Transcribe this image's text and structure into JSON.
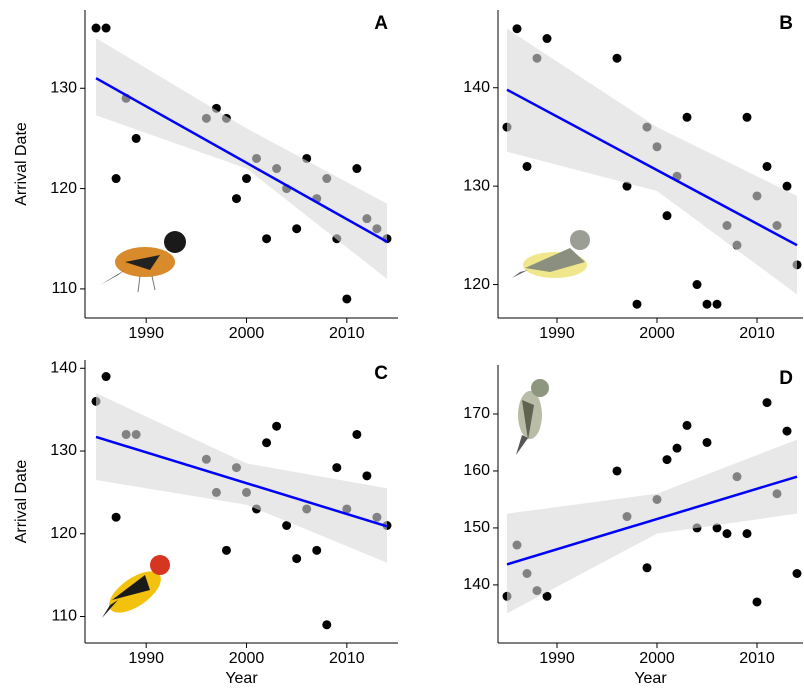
{
  "chart_data": [
    {
      "type": "scatter",
      "title": "A",
      "ylabel": "Arrival Date",
      "x": [
        1985,
        1986,
        1987,
        1988,
        1989,
        1996,
        1997,
        1998,
        1999,
        2000,
        2001,
        2002,
        2003,
        2004,
        2005,
        2006,
        2007,
        2008,
        2009,
        2010,
        2011,
        2012,
        2013,
        2014
      ],
      "values": [
        136,
        136,
        121,
        129,
        125,
        127,
        128,
        127,
        119,
        121,
        123,
        115,
        122,
        120,
        116,
        123,
        119,
        121,
        115,
        109,
        122,
        117,
        116,
        115
      ],
      "color": "#000000",
      "fit": {
        "x": [
          1985,
          2014
        ],
        "y": [
          131,
          114.7
        ],
        "color": "#0000ff"
      },
      "band": {
        "x": [
          1985,
          2000,
          2014
        ],
        "lower": [
          127.3,
          122,
          111
        ],
        "upper": [
          135,
          126,
          118.5
        ],
        "color": "#d9d9d9"
      },
      "xlim": [
        1983.9,
        2015.1
      ],
      "ylim": [
        107.1,
        137.8
      ],
      "xticks": [
        1990,
        2000,
        2010
      ],
      "yticks": [
        110,
        120,
        130
      ]
    },
    {
      "type": "scatter",
      "title": "B",
      "x": [
        1985,
        1986,
        1987,
        1988,
        1989,
        1996,
        1997,
        1998,
        1999,
        2000,
        2001,
        2002,
        2003,
        2004,
        2005,
        2006,
        2007,
        2008,
        2009,
        2010,
        2011,
        2012,
        2013,
        2014
      ],
      "values": [
        136,
        146,
        132,
        143,
        145,
        143,
        130,
        118,
        136,
        134,
        127,
        131,
        137,
        120,
        118,
        118,
        126,
        124,
        137,
        129,
        132,
        126,
        130,
        122
      ],
      "color": "#000000",
      "fit": {
        "x": [
          1985,
          2014
        ],
        "y": [
          139.8,
          124
        ],
        "color": "#0000ff"
      },
      "band": {
        "x": [
          1985,
          2000,
          2014
        ],
        "lower": [
          133.5,
          129.5,
          119
        ],
        "upper": [
          146,
          136,
          129
        ],
        "color": "#d9d9d9"
      },
      "xlim": [
        1984.1,
        2014.6
      ],
      "ylim": [
        116.6,
        147.9
      ],
      "xticks": [
        1990,
        2000,
        2010
      ],
      "yticks": [
        120,
        130,
        140
      ]
    },
    {
      "type": "scatter",
      "title": "C",
      "ylabel": "Arrival Date",
      "xlabel": "Year",
      "x": [
        1985,
        1986,
        1987,
        1988,
        1989,
        1996,
        1997,
        1998,
        1999,
        2000,
        2001,
        2002,
        2003,
        2004,
        2005,
        2006,
        2007,
        2008,
        2009,
        2010,
        2011,
        2012,
        2013,
        2014
      ],
      "values": [
        136,
        139,
        122,
        132,
        132,
        129,
        125,
        118,
        128,
        125,
        123,
        131,
        133,
        121,
        117,
        123,
        118,
        109,
        128,
        123,
        132,
        127,
        122,
        121
      ],
      "color": "#000000",
      "fit": {
        "x": [
          1985,
          2014
        ],
        "y": [
          131.7,
          120.9
        ],
        "color": "#0000ff"
      },
      "band": {
        "x": [
          1985,
          2000,
          2014
        ],
        "lower": [
          126.5,
          123.5,
          116.5
        ],
        "upper": [
          137,
          128.5,
          125.5
        ],
        "color": "#d9d9d9"
      },
      "xlim": [
        1983.9,
        2015.1
      ],
      "ylim": [
        106.8,
        141
      ],
      "xticks": [
        1990,
        2000,
        2010
      ],
      "yticks": [
        110,
        120,
        130,
        140
      ]
    },
    {
      "type": "scatter",
      "title": "D",
      "xlabel": "Year",
      "x": [
        1985,
        1986,
        1987,
        1988,
        1989,
        1996,
        1997,
        1999,
        2000,
        2001,
        2002,
        2003,
        2004,
        2005,
        2006,
        2007,
        2008,
        2009,
        2010,
        2011,
        2012,
        2013,
        2014
      ],
      "values": [
        138,
        147,
        142,
        139,
        138,
        160,
        152,
        143,
        155,
        162,
        164,
        168,
        150,
        165,
        150,
        149,
        159,
        149,
        137,
        172,
        156,
        167,
        142
      ],
      "color": "#000000",
      "fit": {
        "x": [
          1985,
          2014
        ],
        "y": [
          143.6,
          159
        ],
        "color": "#0000ff"
      },
      "band": {
        "x": [
          1985,
          2000,
          2014
        ],
        "lower": [
          135,
          149,
          152.5
        ],
        "upper": [
          152.5,
          156,
          165.5
        ],
        "color": "#d9d9d9"
      },
      "xlim": [
        1984.1,
        2014.6
      ],
      "ylim": [
        129.8,
        178.6
      ],
      "xticks": [
        1990,
        2000,
        2010
      ],
      "yticks": [
        140,
        150,
        160,
        170
      ]
    }
  ]
}
